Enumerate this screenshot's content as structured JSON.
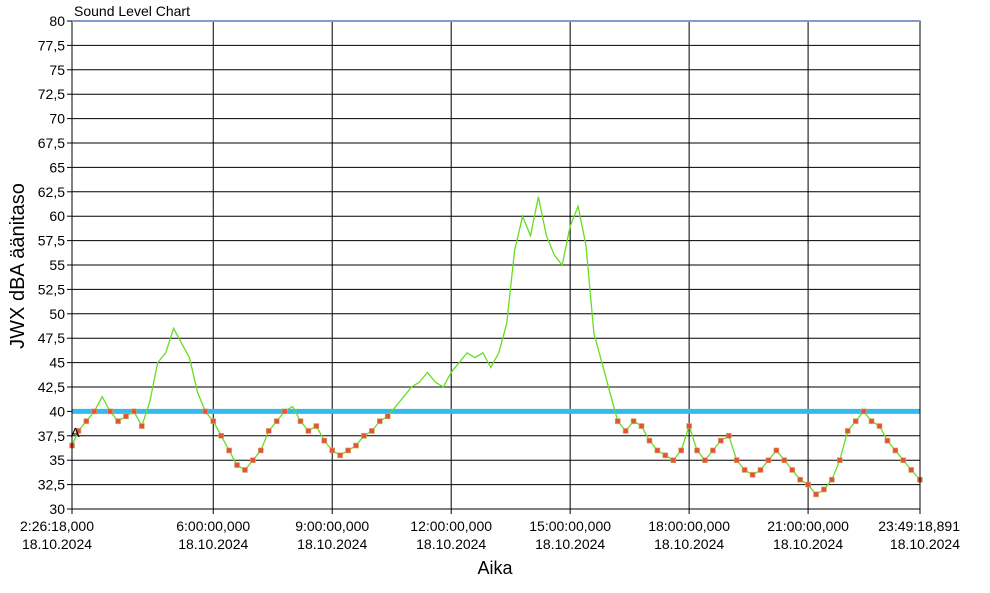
{
  "chart_data": {
    "type": "line",
    "title": "Sound Level Chart",
    "xlabel": "Aika",
    "ylabel": "JWX dBA äänitaso",
    "ylim": [
      30,
      80
    ],
    "ytick_step": 2.5,
    "ytick_labels": [
      "30",
      "32,5",
      "35",
      "37,5",
      "40",
      "42,5",
      "45",
      "47,5",
      "50",
      "52,5",
      "55",
      "57,5",
      "60",
      "62,5",
      "65",
      "67,5",
      "70",
      "72,5",
      "75",
      "77,5",
      "80"
    ],
    "xlim_hours": [
      2.4383,
      23.8219
    ],
    "x_ticks": [
      {
        "hour": 2.4383,
        "time": "2:26:18,000",
        "date": "18.10.2024"
      },
      {
        "hour": 6,
        "time": "6:00:00,000",
        "date": "18.10.2024"
      },
      {
        "hour": 9,
        "time": "9:00:00,000",
        "date": "18.10.2024"
      },
      {
        "hour": 12,
        "time": "12:00:00,000",
        "date": "18.10.2024"
      },
      {
        "hour": 15,
        "time": "15:00:00,000",
        "date": "18.10.2024"
      },
      {
        "hour": 18,
        "time": "18:00:00,000",
        "date": "18.10.2024"
      },
      {
        "hour": 21,
        "time": "21:00:00,000",
        "date": "18.10.2024"
      },
      {
        "hour": 23.8219,
        "time": "23:49:18,891",
        "date": "18.10.2024"
      }
    ],
    "threshold": {
      "value": 40,
      "label": "A"
    },
    "grid": true,
    "colors": {
      "line": "#66dd22",
      "marker_fill": "#e8503a",
      "marker_edge": "#c8b060",
      "threshold": "#33bbee",
      "top_line": "#8899cc"
    },
    "series": [
      {
        "points": [
          [
            2.44,
            36.5
          ],
          [
            2.6,
            38
          ],
          [
            2.8,
            39
          ],
          [
            3.0,
            40
          ],
          [
            3.2,
            41.5
          ],
          [
            3.4,
            40
          ],
          [
            3.6,
            39
          ],
          [
            3.8,
            39.5
          ],
          [
            4.0,
            40
          ],
          [
            4.2,
            38.5
          ],
          [
            4.4,
            41
          ],
          [
            4.6,
            45
          ],
          [
            4.8,
            46
          ],
          [
            5.0,
            48.5
          ],
          [
            5.2,
            47
          ],
          [
            5.4,
            45.5
          ],
          [
            5.6,
            42
          ],
          [
            5.8,
            40
          ],
          [
            6.0,
            39
          ],
          [
            6.2,
            37.5
          ],
          [
            6.4,
            36
          ],
          [
            6.6,
            34.5
          ],
          [
            6.8,
            34
          ],
          [
            7.0,
            35
          ],
          [
            7.2,
            36
          ],
          [
            7.4,
            38
          ],
          [
            7.6,
            39
          ],
          [
            7.8,
            40
          ],
          [
            8.0,
            40.5
          ],
          [
            8.2,
            39
          ],
          [
            8.4,
            38
          ],
          [
            8.6,
            38.5
          ],
          [
            8.8,
            37
          ],
          [
            9.0,
            36
          ],
          [
            9.2,
            35.5
          ],
          [
            9.4,
            36
          ],
          [
            9.6,
            36.5
          ],
          [
            9.8,
            37.5
          ],
          [
            10.0,
            38
          ],
          [
            10.2,
            39
          ],
          [
            10.4,
            39.5
          ],
          [
            10.6,
            40.5
          ],
          [
            10.8,
            41.5
          ],
          [
            11.0,
            42.5
          ],
          [
            11.2,
            43
          ],
          [
            11.4,
            44
          ],
          [
            11.6,
            43
          ],
          [
            11.8,
            42.5
          ],
          [
            12.0,
            44
          ],
          [
            12.2,
            45
          ],
          [
            12.4,
            46
          ],
          [
            12.6,
            45.5
          ],
          [
            12.8,
            46
          ],
          [
            13.0,
            44.5
          ],
          [
            13.2,
            46
          ],
          [
            13.4,
            49
          ],
          [
            13.6,
            56.5
          ],
          [
            13.8,
            60
          ],
          [
            14.0,
            58
          ],
          [
            14.2,
            62
          ],
          [
            14.4,
            58
          ],
          [
            14.6,
            56
          ],
          [
            14.8,
            55
          ],
          [
            15.0,
            59
          ],
          [
            15.2,
            61
          ],
          [
            15.4,
            57
          ],
          [
            15.6,
            48
          ],
          [
            15.8,
            45
          ],
          [
            16.0,
            42
          ],
          [
            16.2,
            39
          ],
          [
            16.4,
            38
          ],
          [
            16.6,
            39
          ],
          [
            16.8,
            38.5
          ],
          [
            17.0,
            37
          ],
          [
            17.2,
            36
          ],
          [
            17.4,
            35.5
          ],
          [
            17.6,
            35
          ],
          [
            17.8,
            36
          ],
          [
            18.0,
            38.5
          ],
          [
            18.2,
            36
          ],
          [
            18.4,
            35
          ],
          [
            18.6,
            36
          ],
          [
            18.8,
            37
          ],
          [
            19.0,
            37.5
          ],
          [
            19.2,
            35
          ],
          [
            19.4,
            34
          ],
          [
            19.6,
            33.5
          ],
          [
            19.8,
            34
          ],
          [
            20.0,
            35
          ],
          [
            20.2,
            36
          ],
          [
            20.4,
            35
          ],
          [
            20.6,
            34
          ],
          [
            20.8,
            33
          ],
          [
            21.0,
            32.5
          ],
          [
            21.2,
            31.5
          ],
          [
            21.4,
            32
          ],
          [
            21.6,
            33
          ],
          [
            21.8,
            35
          ],
          [
            22.0,
            38
          ],
          [
            22.2,
            39
          ],
          [
            22.4,
            40
          ],
          [
            22.6,
            39
          ],
          [
            22.8,
            38.5
          ],
          [
            23.0,
            37
          ],
          [
            23.2,
            36
          ],
          [
            23.4,
            35
          ],
          [
            23.6,
            34
          ],
          [
            23.82,
            33
          ]
        ]
      }
    ]
  }
}
